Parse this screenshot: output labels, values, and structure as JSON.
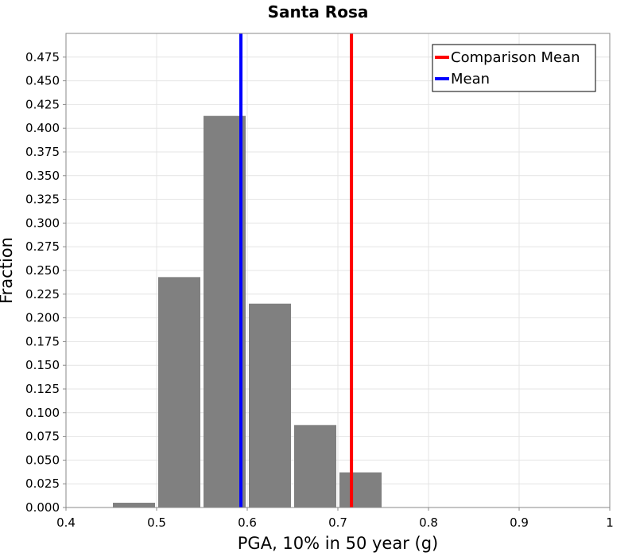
{
  "chart_data": {
    "type": "bar",
    "title": "Santa Rosa",
    "xlabel": "PGA, 10% in 50 year (g)",
    "ylabel": "Fraction",
    "xlim": [
      0.4,
      1.0
    ],
    "ylim": [
      0.0,
      0.5
    ],
    "x_ticks": [
      "0.4",
      "0.5",
      "0.6",
      "0.7",
      "0.8",
      "0.9",
      "1"
    ],
    "y_ticks": [
      "0.000",
      "0.025",
      "0.050",
      "0.075",
      "0.100",
      "0.125",
      "0.150",
      "0.175",
      "0.200",
      "0.225",
      "0.250",
      "0.275",
      "0.300",
      "0.325",
      "0.350",
      "0.375",
      "0.400",
      "0.425",
      "0.450",
      "0.475"
    ],
    "grid": true,
    "bin_width": 0.05,
    "bins": [
      {
        "center": 0.475,
        "value": 0.005
      },
      {
        "center": 0.525,
        "value": 0.243
      },
      {
        "center": 0.575,
        "value": 0.413
      },
      {
        "center": 0.625,
        "value": 0.215
      },
      {
        "center": 0.675,
        "value": 0.087
      },
      {
        "center": 0.725,
        "value": 0.037
      }
    ],
    "bar_color": "#808080",
    "vertical_lines": [
      {
        "name": "Comparison Mean",
        "x": 0.715,
        "color": "#ff0000"
      },
      {
        "name": "Mean",
        "x": 0.593,
        "color": "#0000ff"
      }
    ],
    "legend": {
      "position": "top-right",
      "entries": [
        {
          "label": "Comparison Mean",
          "color": "#ff0000"
        },
        {
          "label": "Mean",
          "color": "#0000ff"
        }
      ]
    }
  }
}
